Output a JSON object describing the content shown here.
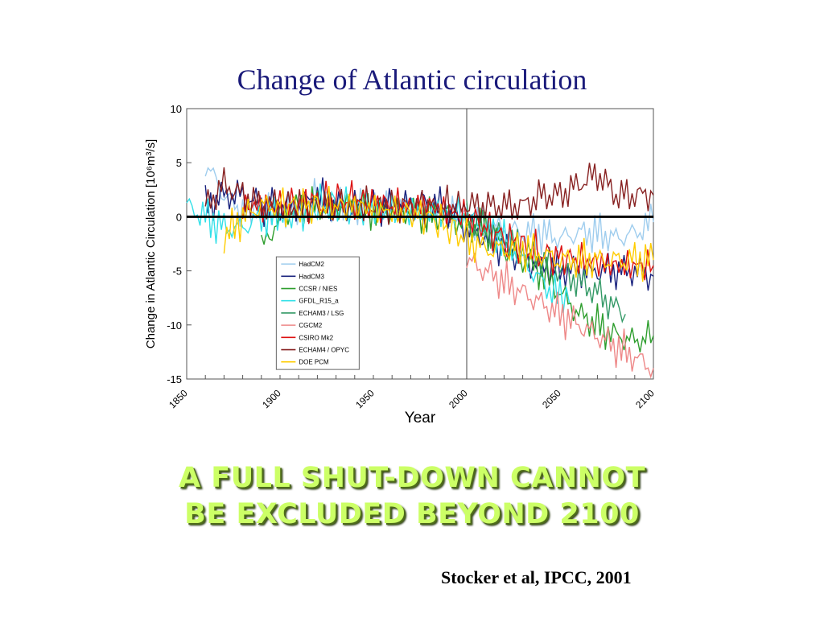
{
  "slide": {
    "title": "Change of Atlantic circulation",
    "headline_line1": "A FULL SHUT-DOWN CANNOT",
    "headline_line2": "BE EXCLUDED BEYOND 2100",
    "citation": "Stocker et al, IPCC, 2001",
    "headline_color": "#ccff66"
  },
  "chart_data": {
    "type": "line",
    "xlabel": "Year",
    "ylabel": "Change in Atlantic Circulation [10⁶m³/s]",
    "xlim": [
      1850,
      2100
    ],
    "ylim": [
      -15,
      10
    ],
    "xticks": [
      1850,
      1900,
      1950,
      2000,
      2050,
      2100
    ],
    "yticks": [
      10,
      5,
      0,
      -5,
      -10,
      -15
    ],
    "reference_line_x": 2000,
    "zero_line": true,
    "grid": false,
    "legend_position": "lower-center",
    "series": [
      {
        "name": "HadCM2",
        "color": "#9fcdee",
        "x": [
          1860,
          1870,
          1880,
          1900,
          1920,
          1940,
          1960,
          1980,
          2000,
          2010,
          2020,
          2030,
          2040,
          2050,
          2060,
          2070,
          2080,
          2090,
          2100
        ],
        "y": [
          5,
          2,
          0.5,
          0.5,
          1.5,
          1,
          1,
          0.5,
          0,
          -1,
          -1,
          -1.5,
          -1.5,
          -2,
          -1.5,
          -1.5,
          -2,
          -1.5,
          -0.5
        ]
      },
      {
        "name": "HadCM3",
        "color": "#1a237e",
        "x": [
          1860,
          1870,
          1880,
          1890,
          1900,
          1910,
          1920,
          1930,
          1940,
          1950,
          1960,
          1970,
          1980,
          1990,
          2000,
          2010,
          2020,
          2030,
          2040,
          2050,
          2060,
          2070,
          2080,
          2090,
          2100
        ],
        "y": [
          1,
          2,
          2,
          1,
          1,
          1,
          2,
          1,
          1,
          1,
          1,
          1,
          1.5,
          0.5,
          -1,
          -2,
          -3,
          -4,
          -4.5,
          -5,
          -5,
          -5,
          -5,
          -5,
          -5.5
        ]
      },
      {
        "name": "CCSR / NIES",
        "color": "#2e9e2e",
        "x": [
          1890,
          1900,
          1910,
          1920,
          1930,
          1940,
          1950,
          1960,
          1970,
          1980,
          1990,
          2000,
          2010,
          2020,
          2030,
          2040,
          2050,
          2060,
          2070,
          2080,
          2090,
          2100
        ],
        "y": [
          -3,
          0,
          1,
          1,
          1,
          1,
          0.5,
          0.5,
          0.5,
          0,
          0,
          -1,
          -1,
          -3,
          -4,
          -5,
          -7,
          -9,
          -10,
          -11,
          -11.5,
          -11
        ]
      },
      {
        "name": "GFDL_R15_a",
        "color": "#33e0e8",
        "x": [
          1850,
          1860,
          1870,
          1880,
          1890,
          1900,
          1920,
          1940,
          1960,
          1980,
          2000,
          2010,
          2020,
          2030,
          2040,
          2050,
          2055
        ],
        "y": [
          1,
          0,
          -1,
          -1,
          0,
          0,
          1,
          1,
          0.5,
          0.5,
          0,
          -1,
          -2,
          -4,
          -6,
          -7.5,
          -8
        ]
      },
      {
        "name": "ECHAM3 / LSG",
        "color": "#339966",
        "x": [
          2000,
          2010,
          2020,
          2030,
          2040,
          2050,
          2060,
          2070,
          2080,
          2085
        ],
        "y": [
          0,
          -1,
          -2,
          -3,
          -4,
          -5,
          -6,
          -7,
          -8.5,
          -9
        ]
      },
      {
        "name": "CGCM2",
        "color": "#ee8888",
        "x": [
          2000,
          2010,
          2020,
          2030,
          2040,
          2050,
          2060,
          2070,
          2080,
          2090,
          2100
        ],
        "y": [
          -4,
          -5,
          -6,
          -7,
          -8,
          -9,
          -10,
          -11,
          -12,
          -13,
          -14
        ]
      },
      {
        "name": "CSIRO Mk2",
        "color": "#dd1111",
        "x": [
          1880,
          1900,
          1920,
          1940,
          1960,
          1980,
          2000,
          2020,
          2040,
          2060,
          2080,
          2100
        ],
        "y": [
          1,
          1,
          1.5,
          1.5,
          1,
          1,
          0,
          -2,
          -3.5,
          -4,
          -4.5,
          -4.5
        ]
      },
      {
        "name": "ECHAM4 / OPYC",
        "color": "#882222",
        "x": [
          1860,
          1870,
          1880,
          1890,
          1900,
          2000,
          2010,
          2020,
          2030,
          2040,
          2050,
          2060,
          2070,
          2080,
          2090,
          2100
        ],
        "y": [
          1,
          3,
          2,
          1,
          1,
          1,
          1,
          1,
          1,
          2,
          2,
          3,
          4,
          2,
          2,
          2
        ]
      },
      {
        "name": "DOE PCM",
        "color": "#ffcc00",
        "x": [
          1870,
          1880,
          1890,
          1900,
          1920,
          1940,
          1960,
          1980,
          2000,
          2010,
          2020,
          2030,
          2040,
          2050,
          2060,
          2070,
          2080,
          2090,
          2100
        ],
        "y": [
          -2,
          0,
          1,
          1,
          1,
          1,
          0.5,
          0,
          -2,
          -3,
          -3,
          -3,
          -3.5,
          -4,
          -4,
          -4,
          -4,
          -4,
          -4
        ]
      }
    ]
  }
}
